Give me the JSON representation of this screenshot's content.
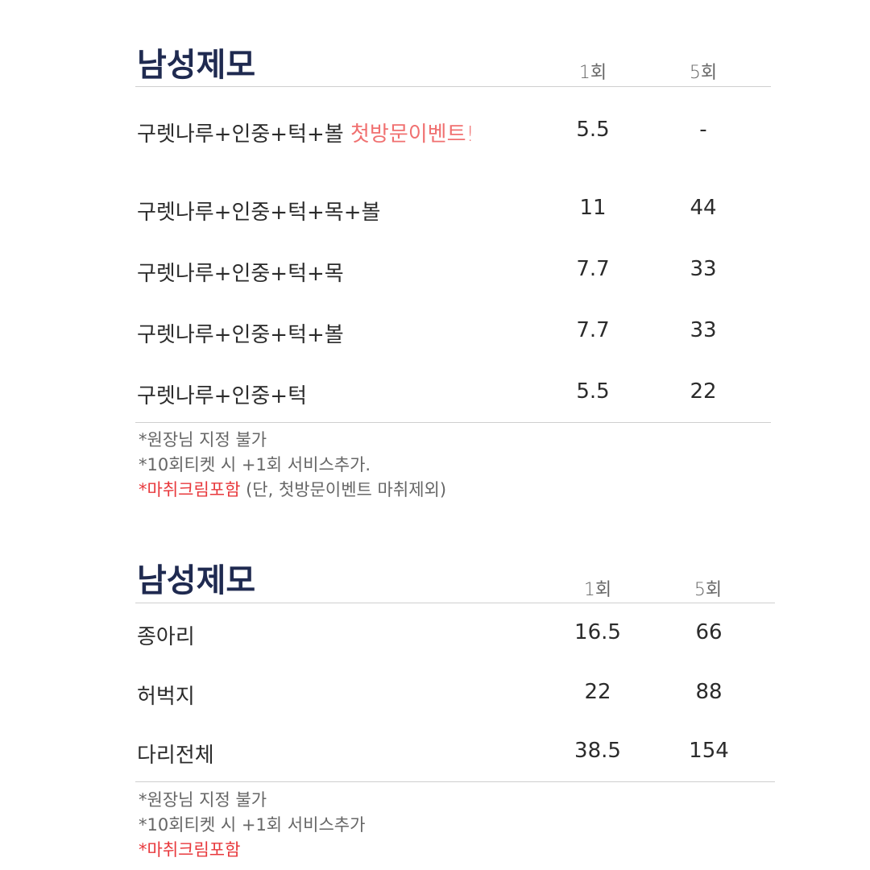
{
  "colors": {
    "title": "#1f2a50",
    "event": "#f07070",
    "note_red": "#e8393d"
  },
  "sections": [
    {
      "title": "남성제모",
      "headers": [
        "1회",
        "5회"
      ],
      "rows": [
        {
          "label": "구렛나루+인중+턱+볼",
          "badge": "첫방문이벤트!",
          "p1": "5.5",
          "p5": "-"
        },
        {
          "label": "구렛나루+인중+턱+목+볼",
          "p1": "11",
          "p5": "44"
        },
        {
          "label": "구렛나루+인중+턱+목",
          "p1": "7.7",
          "p5": "33"
        },
        {
          "label": "구렛나루+인중+턱+볼",
          "p1": "7.7",
          "p5": "33"
        },
        {
          "label": "구렛나루+인중+턱",
          "p1": "5.5",
          "p5": "22"
        }
      ],
      "notes": [
        "*원장님 지정 불가",
        "*10회티켓 시 +1회 서비스추가."
      ],
      "note_red": "*마취크림포함",
      "note_red_suffix": " (단, 첫방문이벤트 마취제외)"
    },
    {
      "title": "남성제모",
      "headers": [
        "1회",
        "5회"
      ],
      "rows": [
        {
          "label": "종아리",
          "p1": "16.5",
          "p5": "66"
        },
        {
          "label": "허벅지",
          "p1": "22",
          "p5": "88"
        },
        {
          "label": "다리전체",
          "p1": "38.5",
          "p5": "154"
        }
      ],
      "notes": [
        "*원장님 지정 불가",
        "*10회티켓 시 +1회 서비스추가"
      ],
      "note_red": "*마취크림포함"
    }
  ]
}
